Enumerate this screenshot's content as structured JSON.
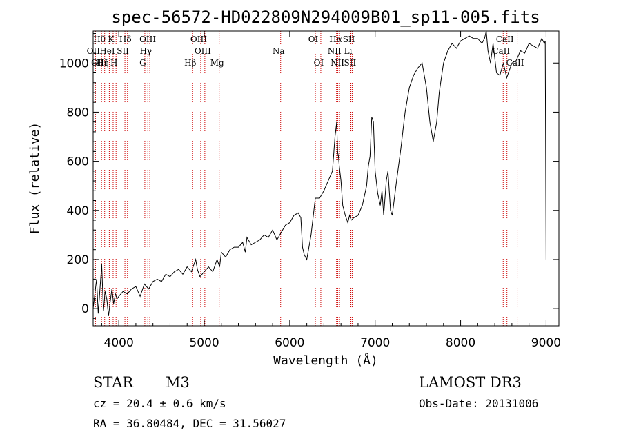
{
  "chart_data": {
    "type": "line",
    "title": "spec-56572-HD022809N294009B01_sp11-005.fits",
    "xlabel": "Wavelength (Å)",
    "ylabel": "Flux (relative)",
    "xlim": [
      3700,
      9150
    ],
    "ylim": [
      -70,
      1130
    ],
    "xticks": [
      4000,
      5000,
      6000,
      7000,
      8000,
      9000
    ],
    "yticks": [
      0,
      200,
      400,
      600,
      800,
      1000
    ],
    "line_color": "#000000",
    "marker_color": "#cc0000",
    "series": [
      {
        "name": "flux",
        "x": [
          3700,
          3720,
          3740,
          3760,
          3780,
          3800,
          3820,
          3840,
          3860,
          3880,
          3900,
          3920,
          3940,
          3960,
          3980,
          4000,
          4050,
          4100,
          4150,
          4200,
          4250,
          4300,
          4350,
          4400,
          4450,
          4500,
          4550,
          4600,
          4650,
          4700,
          4750,
          4800,
          4850,
          4880,
          4900,
          4920,
          4950,
          5000,
          5050,
          5100,
          5150,
          5180,
          5200,
          5250,
          5300,
          5350,
          5400,
          5450,
          5480,
          5500,
          5550,
          5600,
          5650,
          5700,
          5750,
          5800,
          5850,
          5900,
          5950,
          6000,
          6050,
          6100,
          6130,
          6150,
          6170,
          6200,
          6250,
          6300,
          6350,
          6400,
          6450,
          6500,
          6530,
          6550,
          6560,
          6570,
          6580,
          6600,
          6620,
          6650,
          6680,
          6700,
          6720,
          6750,
          6800,
          6850,
          6900,
          6920,
          6940,
          6960,
          6980,
          7000,
          7030,
          7060,
          7080,
          7100,
          7130,
          7150,
          7180,
          7200,
          7250,
          7300,
          7350,
          7400,
          7450,
          7500,
          7550,
          7600,
          7640,
          7660,
          7680,
          7700,
          7720,
          7750,
          7800,
          7850,
          7900,
          7950,
          8000,
          8050,
          8100,
          8150,
          8200,
          8250,
          8280,
          8300,
          8320,
          8350,
          8380,
          8420,
          8460,
          8500,
          8540,
          8560,
          8600,
          8650,
          8700,
          8750,
          8800,
          8850,
          8900,
          8950,
          8980,
          8990,
          9000
        ],
        "y": [
          0,
          60,
          120,
          -20,
          80,
          180,
          -10,
          70,
          40,
          -30,
          30,
          80,
          20,
          60,
          40,
          50,
          70,
          60,
          80,
          90,
          50,
          100,
          80,
          110,
          120,
          110,
          140,
          130,
          150,
          160,
          140,
          170,
          150,
          180,
          200,
          160,
          130,
          150,
          170,
          150,
          200,
          170,
          230,
          210,
          240,
          250,
          250,
          270,
          230,
          290,
          260,
          270,
          280,
          300,
          290,
          320,
          280,
          310,
          340,
          350,
          380,
          390,
          370,
          250,
          220,
          200,
          300,
          450,
          450,
          480,
          520,
          560,
          700,
          760,
          640,
          620,
          580,
          520,
          420,
          380,
          350,
          380,
          360,
          370,
          380,
          420,
          500,
          580,
          620,
          780,
          760,
          560,
          470,
          420,
          480,
          380,
          520,
          560,
          400,
          380,
          520,
          650,
          800,
          900,
          950,
          980,
          1000,
          900,
          760,
          720,
          680,
          720,
          760,
          880,
          1000,
          1050,
          1080,
          1060,
          1090,
          1100,
          1110,
          1100,
          1100,
          1080,
          1100,
          1130,
          1050,
          1000,
          1080,
          960,
          950,
          1000,
          940,
          960,
          1000,
          1010,
          1050,
          1040,
          1080,
          1070,
          1060,
          1100,
          1080,
          1090,
          200
        ]
      }
    ],
    "markers": [
      {
        "x": 3727,
        "top": "",
        "mid": "OII",
        "bot": ""
      },
      {
        "x": 3798,
        "top": "Hθ",
        "mid": "",
        "bot": "OIII"
      },
      {
        "x": 3835,
        "top": "",
        "mid": "",
        "bot": "Hη"
      },
      {
        "x": 3889,
        "top": "",
        "mid": "HeI",
        "bot": ""
      },
      {
        "x": 3934,
        "top": "K",
        "mid": "",
        "bot": ""
      },
      {
        "x": 3968,
        "top": "",
        "mid": "",
        "bot": "H"
      },
      {
        "x": 4072,
        "top": "",
        "mid": "SII",
        "bot": ""
      },
      {
        "x": 4102,
        "top": "Hδ",
        "mid": "",
        "bot": ""
      },
      {
        "x": 4305,
        "top": "",
        "mid": "",
        "bot": "G"
      },
      {
        "x": 4340,
        "top": "",
        "mid": "Hγ",
        "bot": ""
      },
      {
        "x": 4363,
        "top": "OIII",
        "mid": "",
        "bot": ""
      },
      {
        "x": 4861,
        "top": "",
        "mid": "",
        "bot": "Hβ"
      },
      {
        "x": 4959,
        "top": "OIII",
        "mid": "",
        "bot": ""
      },
      {
        "x": 5007,
        "top": "",
        "mid": "OIII",
        "bot": ""
      },
      {
        "x": 5175,
        "top": "",
        "mid": "",
        "bot": "Mg"
      },
      {
        "x": 5894,
        "top": "",
        "mid": "Na",
        "bot": ""
      },
      {
        "x": 6300,
        "top": "OI",
        "mid": "",
        "bot": ""
      },
      {
        "x": 6364,
        "top": "",
        "mid": "",
        "bot": "OI"
      },
      {
        "x": 6548,
        "top": "",
        "mid": "NII",
        "bot": ""
      },
      {
        "x": 6563,
        "top": "Hα",
        "mid": "",
        "bot": ""
      },
      {
        "x": 6583,
        "top": "",
        "mid": "",
        "bot": "NII"
      },
      {
        "x": 6708,
        "top": "",
        "mid": "Li",
        "bot": ""
      },
      {
        "x": 6716,
        "top": "SII",
        "mid": "",
        "bot": ""
      },
      {
        "x": 6731,
        "top": "",
        "mid": "",
        "bot": "SII"
      },
      {
        "x": 8498,
        "top": "",
        "mid": "CaII",
        "bot": ""
      },
      {
        "x": 8542,
        "top": "CaII",
        "mid": "",
        "bot": ""
      },
      {
        "x": 8662,
        "top": "",
        "mid": "",
        "bot": "CaII"
      }
    ]
  },
  "footer": {
    "object_class": "STAR",
    "subclass": "M3",
    "survey": "LAMOST DR3",
    "cz": "cz = 20.4 ± 0.6 km/s",
    "obs_date": "Obs-Date: 20131006",
    "coords": "RA =  36.80484, DEC =  31.56027"
  }
}
